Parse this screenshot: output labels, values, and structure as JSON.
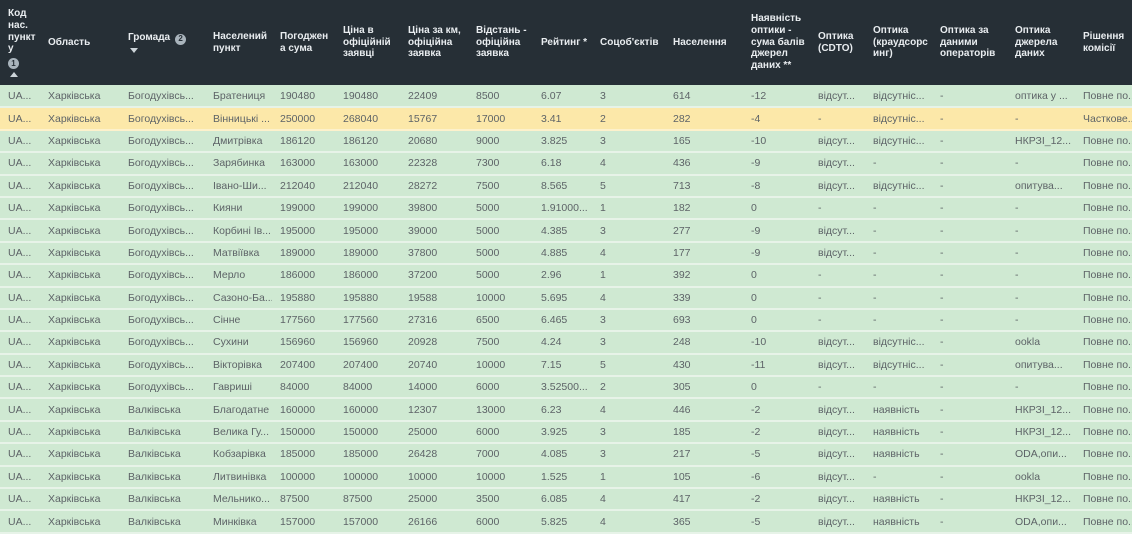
{
  "colors": {
    "header_background": "#262f36",
    "header_text": "#e9edf0",
    "row_green": "#cfe9d2",
    "row_highlight_yellow": "#fce8a9",
    "cell_text": "#5d6367"
  },
  "table": {
    "columns": [
      {
        "id": "code",
        "label": "Код нас. пункту",
        "badge": "1",
        "badge_inline": false,
        "sort": "asc"
      },
      {
        "id": "oblast",
        "label": "Область"
      },
      {
        "id": "hromada",
        "label": "Громада",
        "badge": "2",
        "badge_inline": true,
        "dropdown": true
      },
      {
        "id": "settlement",
        "label": "Населений пункт"
      },
      {
        "id": "agreed-sum",
        "label": "Погоджена сума"
      },
      {
        "id": "price-official",
        "label": "Ціна в офіційній заявці"
      },
      {
        "id": "price-per-km",
        "label": "Ціна за км, офіційна заявка"
      },
      {
        "id": "distance",
        "label": "Відстань - офіційна заявка"
      },
      {
        "id": "rating",
        "label": "Рейтинг *"
      },
      {
        "id": "social-objects",
        "label": "Соцоб'єктів"
      },
      {
        "id": "population",
        "label": "Населення"
      },
      {
        "id": "optics-score",
        "label": "Наявність оптики - сума балів джерел даних **"
      },
      {
        "id": "optics-cdto",
        "label": "Оптика (CDTO)"
      },
      {
        "id": "optics-crowd",
        "label": "Оптика (краудсорсинг)"
      },
      {
        "id": "optics-operators",
        "label": "Оптика за даними операторів"
      },
      {
        "id": "optics-sources",
        "label": "Оптика джерела даних"
      },
      {
        "id": "decision",
        "label": "Рішення комісії"
      }
    ],
    "highlighted_row_index": 1,
    "rows": [
      [
        "UA...",
        "Харківська",
        "Богодухівсь...",
        "Братениця",
        "190480",
        "190480",
        "22409",
        "8500",
        "6.07",
        "3",
        "614",
        "-12",
        "відсут...",
        "відсутніс...",
        "-",
        "оптика у ...",
        "Повне по..."
      ],
      [
        "UA...",
        "Харківська",
        "Богодухівсь...",
        "Вінницькі ...",
        "250000",
        "268040",
        "15767",
        "17000",
        "3.41",
        "2",
        "282",
        "-4",
        "-",
        "відсутніс...",
        "-",
        "-",
        "Часткове..."
      ],
      [
        "UA...",
        "Харківська",
        "Богодухівсь...",
        "Дмитрівка",
        "186120",
        "186120",
        "20680",
        "9000",
        "3.825",
        "3",
        "165",
        "-10",
        "відсут...",
        "відсутніс...",
        "-",
        "НКРЗІ_12...",
        "Повне по..."
      ],
      [
        "UA...",
        "Харківська",
        "Богодухівсь...",
        "Зарябинка",
        "163000",
        "163000",
        "22328",
        "7300",
        "6.18",
        "4",
        "436",
        "-9",
        "відсут...",
        "-",
        "-",
        "-",
        "Повне по..."
      ],
      [
        "UA...",
        "Харківська",
        "Богодухівсь...",
        "Івано-Ши...",
        "212040",
        "212040",
        "28272",
        "7500",
        "8.565",
        "5",
        "713",
        "-8",
        "відсут...",
        "відсутніс...",
        "-",
        "опитува...",
        "Повне по..."
      ],
      [
        "UA...",
        "Харківська",
        "Богодухівсь...",
        "Кияни",
        "199000",
        "199000",
        "39800",
        "5000",
        "1.91000...",
        "1",
        "182",
        "0",
        "-",
        "-",
        "-",
        "-",
        "Повне по..."
      ],
      [
        "UA...",
        "Харківська",
        "Богодухівсь...",
        "Корбині Ів...",
        "195000",
        "195000",
        "39000",
        "5000",
        "4.385",
        "3",
        "277",
        "-9",
        "відсут...",
        "-",
        "-",
        "-",
        "Повне по..."
      ],
      [
        "UA...",
        "Харківська",
        "Богодухівсь...",
        "Матвіївка",
        "189000",
        "189000",
        "37800",
        "5000",
        "4.885",
        "4",
        "177",
        "-9",
        "відсут...",
        "-",
        "-",
        "-",
        "Повне по..."
      ],
      [
        "UA...",
        "Харківська",
        "Богодухівсь...",
        "Мерло",
        "186000",
        "186000",
        "37200",
        "5000",
        "2.96",
        "1",
        "392",
        "0",
        "-",
        "-",
        "-",
        "-",
        "Повне по..."
      ],
      [
        "UA...",
        "Харківська",
        "Богодухівсь...",
        "Сазоно-Ба...",
        "195880",
        "195880",
        "19588",
        "10000",
        "5.695",
        "4",
        "339",
        "0",
        "-",
        "-",
        "-",
        "-",
        "Повне по..."
      ],
      [
        "UA...",
        "Харківська",
        "Богодухівсь...",
        "Сінне",
        "177560",
        "177560",
        "27316",
        "6500",
        "6.465",
        "3",
        "693",
        "0",
        "-",
        "-",
        "-",
        "-",
        "Повне по..."
      ],
      [
        "UA...",
        "Харківська",
        "Богодухівсь...",
        "Сухини",
        "156960",
        "156960",
        "20928",
        "7500",
        "4.24",
        "3",
        "248",
        "-10",
        "відсут...",
        "відсутніс...",
        "-",
        "ookla",
        "Повне по..."
      ],
      [
        "UA...",
        "Харківська",
        "Богодухівсь...",
        "Вікторівка",
        "207400",
        "207400",
        "20740",
        "10000",
        "7.15",
        "5",
        "430",
        "-11",
        "відсут...",
        "відсутніс...",
        "-",
        "опитува...",
        "Повне по..."
      ],
      [
        "UA...",
        "Харківська",
        "Богодухівсь...",
        "Гавриші",
        "84000",
        "84000",
        "14000",
        "6000",
        "3.52500...",
        "2",
        "305",
        "0",
        "-",
        "-",
        "-",
        "-",
        "Повне по..."
      ],
      [
        "UA...",
        "Харківська",
        "Валківська",
        "Благодатне",
        "160000",
        "160000",
        "12307",
        "13000",
        "6.23",
        "4",
        "446",
        "-2",
        "відсут...",
        "наявність",
        "-",
        "НКРЗІ_12...",
        "Повне по..."
      ],
      [
        "UA...",
        "Харківська",
        "Валківська",
        "Велика Гу...",
        "150000",
        "150000",
        "25000",
        "6000",
        "3.925",
        "3",
        "185",
        "-2",
        "відсут...",
        "наявність",
        "-",
        "НКРЗІ_12...",
        "Повне по..."
      ],
      [
        "UA...",
        "Харківська",
        "Валківська",
        "Кобзарівка",
        "185000",
        "185000",
        "26428",
        "7000",
        "4.085",
        "3",
        "217",
        "-5",
        "відсут...",
        "наявність",
        "-",
        "ODA,опи...",
        "Повне по..."
      ],
      [
        "UA...",
        "Харківська",
        "Валківська",
        "Литвинівка",
        "100000",
        "100000",
        "10000",
        "10000",
        "1.525",
        "1",
        "105",
        "-6",
        "відсут...",
        "-",
        "-",
        "ookla",
        "Повне по..."
      ],
      [
        "UA...",
        "Харківська",
        "Валківська",
        "Мельнико...",
        "87500",
        "87500",
        "25000",
        "3500",
        "6.085",
        "4",
        "417",
        "-2",
        "відсут...",
        "наявність",
        "-",
        "НКРЗІ_12...",
        "Повне по..."
      ],
      [
        "UA...",
        "Харківська",
        "Валківська",
        "Минківка",
        "157000",
        "157000",
        "26166",
        "6000",
        "5.825",
        "4",
        "365",
        "-5",
        "відсут...",
        "наявність",
        "-",
        "ODA,опи...",
        "Повне по..."
      ]
    ]
  }
}
